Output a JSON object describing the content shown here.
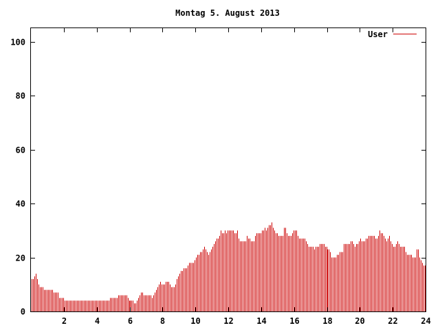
{
  "chart_data": {
    "type": "bar",
    "title": "Montag 5. August 2013",
    "xlabel": "",
    "ylabel": "",
    "xlim": [
      0,
      24
    ],
    "ylim": [
      0,
      105
    ],
    "x_ticks": [
      "2",
      "4",
      "6",
      "8",
      "10",
      "12",
      "14",
      "16",
      "18",
      "20",
      "22",
      "24"
    ],
    "y_ticks": [
      "0",
      "20",
      "40",
      "60",
      "80",
      "100"
    ],
    "legend_position": "top-right",
    "grid": false,
    "series": [
      {
        "name": "User",
        "color": "#cc0000",
        "interval_minutes": 5,
        "values": [
          12,
          12,
          13,
          14,
          12,
          10,
          9,
          9,
          9,
          8,
          8,
          8,
          8,
          8,
          8,
          8,
          7,
          7,
          7,
          7,
          5,
          5,
          5,
          5,
          4,
          4,
          4,
          4,
          4,
          4,
          4,
          4,
          4,
          4,
          4,
          4,
          4,
          4,
          4,
          4,
          4,
          4,
          4,
          4,
          4,
          4,
          4,
          4,
          4,
          4,
          4,
          4,
          4,
          4,
          4,
          4,
          4,
          5,
          5,
          5,
          5,
          5,
          5,
          6,
          6,
          6,
          6,
          6,
          6,
          6,
          5,
          4,
          4,
          4,
          4,
          3,
          3,
          4,
          5,
          6,
          7,
          7,
          6,
          6,
          6,
          6,
          6,
          6,
          5,
          6,
          7,
          8,
          9,
          10,
          11,
          10,
          10,
          10,
          11,
          11,
          11,
          10,
          9,
          9,
          9,
          10,
          12,
          13,
          14,
          15,
          15,
          16,
          16,
          16,
          17,
          18,
          18,
          18,
          18,
          19,
          20,
          21,
          21,
          22,
          22,
          23,
          24,
          23,
          22,
          21,
          22,
          23,
          24,
          25,
          26,
          27,
          27,
          28,
          30,
          29,
          29,
          30,
          29,
          30,
          30,
          30,
          30,
          30,
          29,
          29,
          30,
          27,
          26,
          26,
          26,
          26,
          26,
          28,
          27,
          27,
          26,
          26,
          26,
          28,
          29,
          29,
          29,
          29,
          30,
          30,
          31,
          30,
          31,
          32,
          32,
          33,
          31,
          30,
          29,
          29,
          28,
          28,
          28,
          28,
          31,
          31,
          29,
          28,
          28,
          28,
          29,
          30,
          30,
          30,
          28,
          27,
          27,
          27,
          27,
          27,
          26,
          25,
          24,
          24,
          24,
          24,
          23,
          24,
          24,
          24,
          25,
          25,
          25,
          25,
          24,
          24,
          23,
          23,
          22,
          20,
          20,
          20,
          20,
          21,
          21,
          22,
          22,
          22,
          25,
          25,
          25,
          25,
          25,
          26,
          26,
          25,
          24,
          25,
          25,
          26,
          27,
          26,
          26,
          26,
          27,
          27,
          28,
          28,
          28,
          28,
          28,
          27,
          27,
          28,
          30,
          29,
          29,
          28,
          27,
          26,
          27,
          28,
          26,
          25,
          24,
          24,
          25,
          26,
          25,
          24,
          24,
          24,
          24,
          22,
          21,
          21,
          21,
          21,
          20,
          20,
          20,
          23,
          23,
          20,
          19,
          18,
          17,
          17
        ]
      }
    ]
  }
}
